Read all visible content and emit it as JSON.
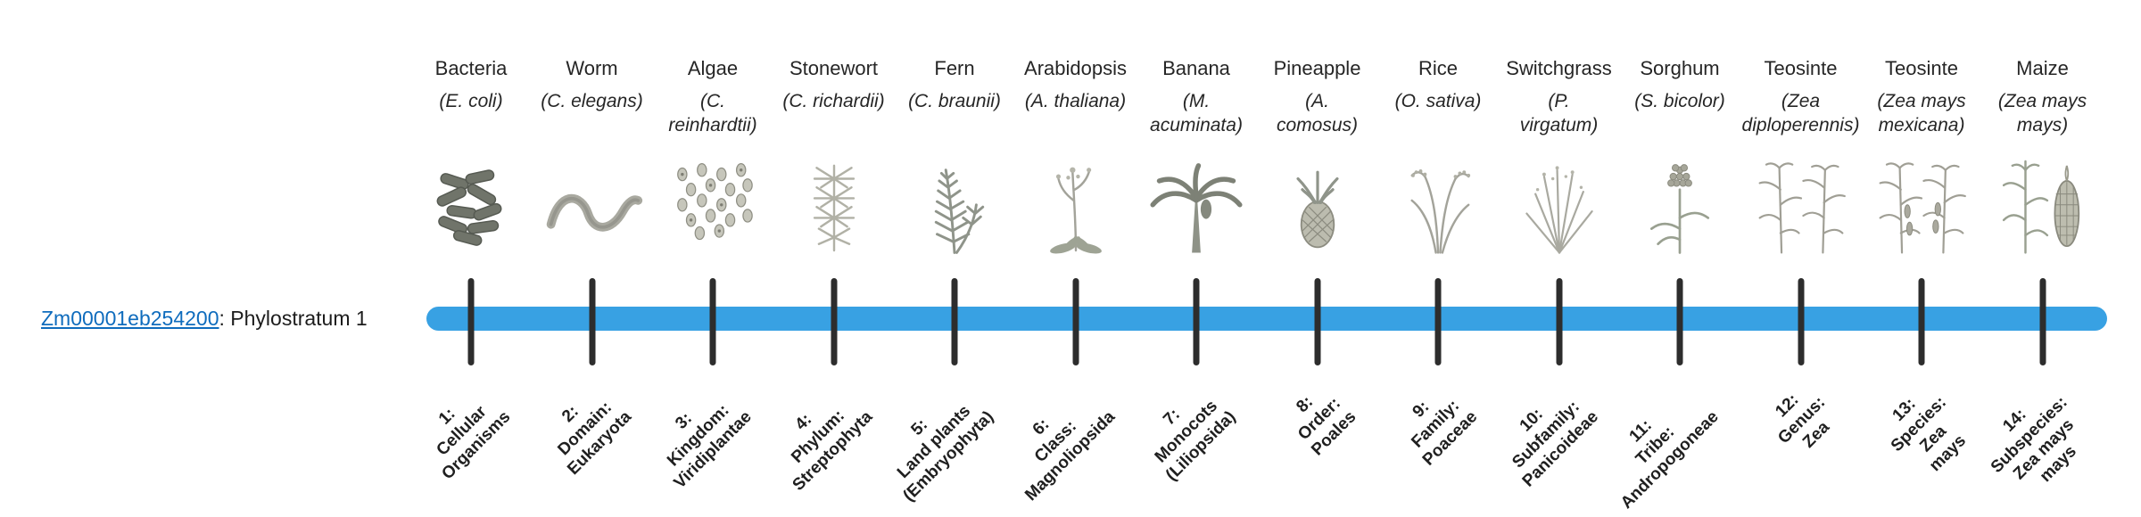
{
  "page": {
    "gene_link": "Zm00001eb254200",
    "gene_suffix": ": Phylostratum 1"
  },
  "colors": {
    "bar": "#38a1e3",
    "link": "#0f6cbd",
    "tick": "#2d2d2d"
  },
  "organisms": [
    {
      "name": "Bacteria",
      "sci": "(E. coli)",
      "icon": "bacteria-icon",
      "stratum": "1:\nCellular\nOrganisms"
    },
    {
      "name": "Worm",
      "sci": "(C. elegans)",
      "icon": "worm-icon",
      "stratum": "2:\nDomain:\nEukaryota"
    },
    {
      "name": "Algae",
      "sci": "(C.\nreinhardtii)",
      "icon": "algae-icon",
      "stratum": "3:\nKingdom:\nViridiplantae"
    },
    {
      "name": "Stonewort",
      "sci": "(C. richardii)",
      "icon": "stonewort-icon",
      "stratum": "4:\nPhylum:\nStreptophyta"
    },
    {
      "name": "Fern",
      "sci": "(C. braunii)",
      "icon": "fern-icon",
      "stratum": "5:\nLand plants\n(Embryophyta)"
    },
    {
      "name": "Arabidopsis",
      "sci": "(A. thaliana)",
      "icon": "arabidopsis-icon",
      "stratum": "6:\nClass:\nMagnoliopsida"
    },
    {
      "name": "Banana",
      "sci": "(M.\nacuminata)",
      "icon": "banana-icon",
      "stratum": "7:\nMonocots\n(Liliopsida)"
    },
    {
      "name": "Pineapple",
      "sci": "(A.\ncomosus)",
      "icon": "pineapple-icon",
      "stratum": "8:\nOrder:\nPoales"
    },
    {
      "name": "Rice",
      "sci": "(O. sativa)",
      "icon": "rice-icon",
      "stratum": "9:\nFamily:\nPoaceae"
    },
    {
      "name": "Switchgrass",
      "sci": "(P.\nvirgatum)",
      "icon": "switchgrass-icon",
      "stratum": "10:\nSubfamily:\nPanicoideae"
    },
    {
      "name": "Sorghum",
      "sci": "(S. bicolor)",
      "icon": "sorghum-icon",
      "stratum": "11:\nTribe:\nAndropogoneae"
    },
    {
      "name": "Teosinte",
      "sci": "(Zea\ndiploperennis)",
      "icon": "teosinte-diploperennis-icon",
      "stratum": "12:\nGenus:\nZea"
    },
    {
      "name": "Teosinte",
      "sci": "(Zea mays\nmexicana)",
      "icon": "teosinte-mexicana-icon",
      "stratum": "13:\nSpecies:\nZea\nmays"
    },
    {
      "name": "Maize",
      "sci": "(Zea mays\nmays)",
      "icon": "maize-icon",
      "stratum": "14:\nSubspecies:\nZea mays\nmays"
    }
  ]
}
